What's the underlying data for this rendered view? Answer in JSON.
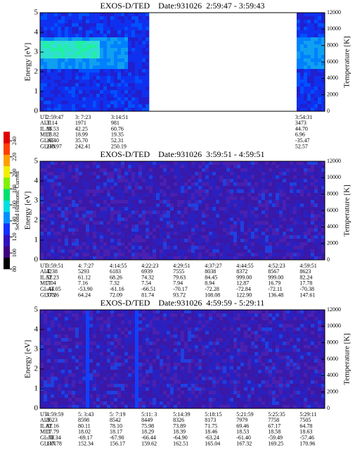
{
  "colorbar": {
    "label": "Second Harmonic Current",
    "ticks": [
      80,
      100,
      120,
      140,
      160,
      180,
      200,
      220,
      240
    ],
    "colors": [
      "#000000",
      "#400080",
      "#3010c0",
      "#1030ff",
      "#0090ff",
      "#00e0e0",
      "#00e070",
      "#80f000",
      "#f0f000",
      "#ffa000",
      "#ff4000",
      "#e00000"
    ]
  },
  "chart_data": [
    {
      "type": "heatmap",
      "title": "EXOS-D/TED    Date:931026  2:59:47 - 3:59:43",
      "ylabel": "Energy [eV]",
      "y2label": "Temperature [K]",
      "ylim": [
        0,
        5
      ],
      "yticks": [
        0,
        1,
        2,
        3,
        4,
        5
      ],
      "y2lim": [
        0,
        12000
      ],
      "y2ticks": [
        0,
        2000,
        4000,
        6000,
        8000,
        10000,
        12000
      ],
      "ephemeris": {
        "labels": [
          "UT",
          "ALT",
          "ILAT",
          "MLT",
          "GLAT",
          "GLON"
        ],
        "rows": [
          [
            "2:59:47",
            "3: 7:23",
            "3:14:51",
            "3:54:31"
          ],
          [
            "3114",
            "1971",
            "981",
            "3473"
          ],
          [
            "36.53",
            "42.25",
            "60.76",
            "44.70"
          ],
          [
            "18.82",
            "18.99",
            "19.35",
            "6.96"
          ],
          [
            "30.40",
            "35.70",
            "52.31",
            "-35.47"
          ],
          [
            "240.97",
            "242.41",
            "250.19",
            "52.57"
          ]
        ]
      }
    },
    {
      "type": "heatmap",
      "title": "EXOS-D/TED    Date:931026  3:59:51 - 4:59:51",
      "ylabel": "Energy [eV]",
      "y2label": "Temperature [K]",
      "ylim": [
        0,
        5
      ],
      "yticks": [
        0,
        1,
        2,
        3,
        4,
        5
      ],
      "y2lim": [
        0,
        12000
      ],
      "y2ticks": [
        0,
        2000,
        4000,
        6000,
        8000,
        10000,
        12000
      ],
      "ephemeris": {
        "labels": [
          "UT",
          "ALT",
          "ILAT",
          "MLT",
          "GLAT",
          "GLON"
        ],
        "rows": [
          [
            "3:59:51",
            "4: 7:27",
            "4:14:55",
            "4:22:23",
            "4:29:51",
            "4:37:27",
            "4:44:55",
            "4:52:23",
            "4:59:51"
          ],
          [
            "4238",
            "5293",
            "6183",
            "6939",
            "7555",
            "8038",
            "8372",
            "8567",
            "8623"
          ],
          [
            "52.23",
            "61.12",
            "68.26",
            "74.32",
            "79.63",
            "84.45",
            "999.00",
            "999.00",
            "82.24"
          ],
          [
            "7.04",
            "7.16",
            "7.32",
            "7.54",
            "7.94",
            "8.94",
            "12.87",
            "16.79",
            "17.78"
          ],
          [
            "-44.05",
            "-53.90",
            "-61.16",
            "-66.51",
            "-70.17",
            "-72.28",
            "-72.84",
            "-72.11",
            "-70.38"
          ],
          [
            "57.26",
            "64.24",
            "72.09",
            "81.74",
            "93.72",
            "108.08",
            "122.90",
            "136.48",
            "147.61"
          ]
        ]
      }
    },
    {
      "type": "heatmap",
      "title": "EXOS-D/TED    Date:931026  4:59:59 - 5:29:11",
      "ylabel": "Energy [eV]",
      "y2label": "Temperature [K]",
      "ylim": [
        0,
        5
      ],
      "yticks": [
        0,
        1,
        2,
        3,
        4,
        5
      ],
      "y2lim": [
        0,
        12000
      ],
      "y2ticks": [
        0,
        2000,
        4000,
        6000,
        8000,
        10000,
        12000
      ],
      "ephemeris": {
        "labels": [
          "UT",
          "ALT",
          "ILAT",
          "MLT",
          "GLAT",
          "GLON"
        ],
        "rows": [
          [
            "4:59:59",
            "5: 3:43",
            "5: 7:19",
            "5:11: 3",
            "5:14:39",
            "5:18:15",
            "5:21:59",
            "5:25:35",
            "5:29:11"
          ],
          [
            "8623",
            "8598",
            "8542",
            "8449",
            "8326",
            "8173",
            "7979",
            "7758",
            "7505"
          ],
          [
            "82.16",
            "80.11",
            "78.10",
            "75.98",
            "73.89",
            "71.75",
            "69.46",
            "67.17",
            "64.78"
          ],
          [
            "17.79",
            "18.02",
            "18.17",
            "18.29",
            "18.39",
            "18.46",
            "18.53",
            "18.58",
            "18.63"
          ],
          [
            "-70.34",
            "-69.17",
            "-67.90",
            "-66.44",
            "-64.90",
            "-63.24",
            "-61.40",
            "-59.49",
            "-57.46"
          ],
          [
            "147.78",
            "152.34",
            "156.17",
            "159.62",
            "162.51",
            "165.04",
            "167.32",
            "169.25",
            "170.96"
          ]
        ]
      }
    }
  ]
}
